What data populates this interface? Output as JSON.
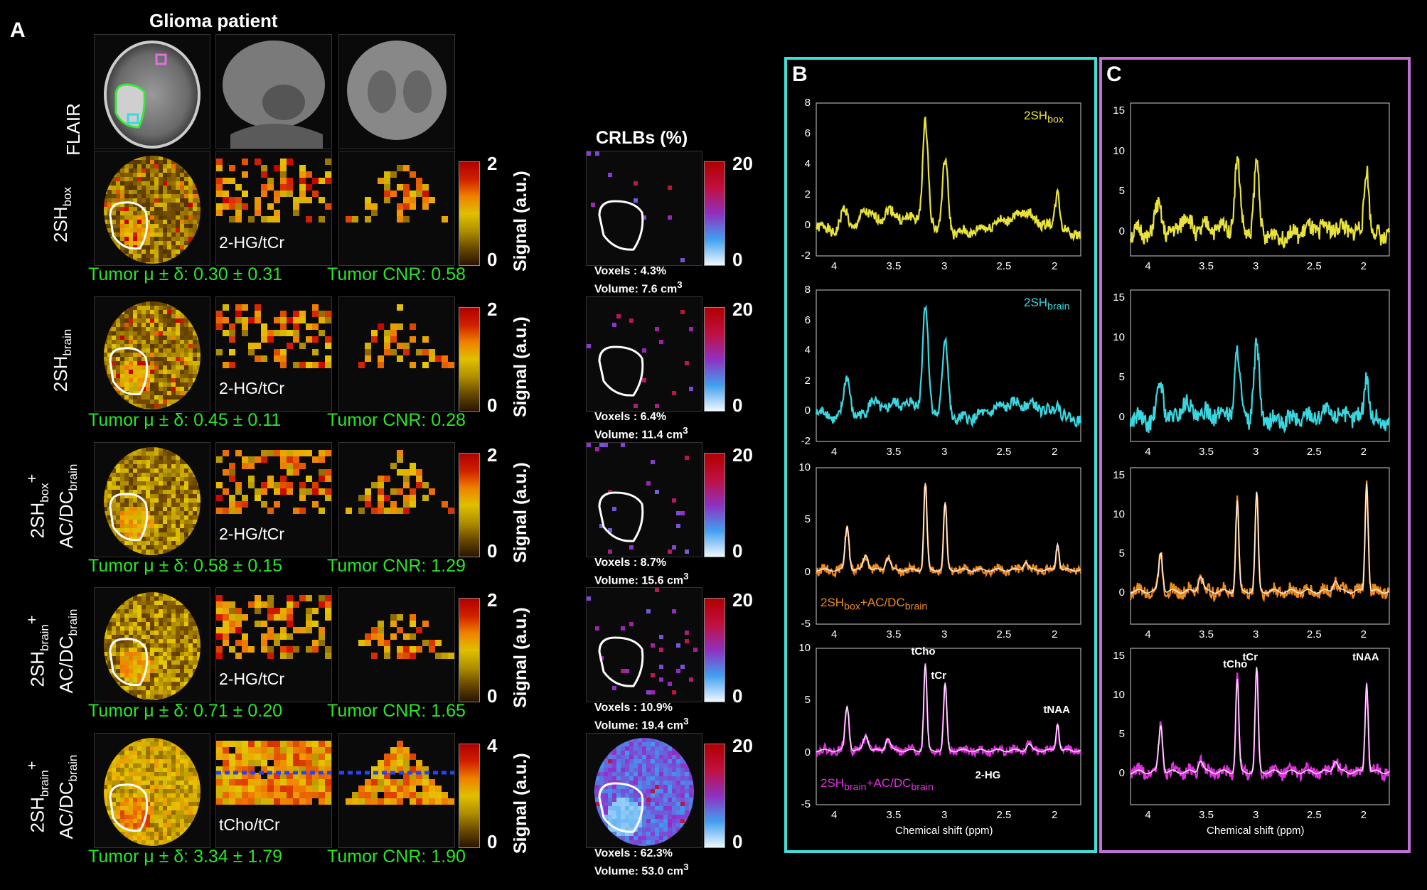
{
  "panelA": {
    "letter": "A",
    "title": "Glioma patient",
    "flair_label": "FLAIR",
    "rows": [
      {
        "label_main": "2SH",
        "label_sub": "box",
        "label_line2": "",
        "label_line2_sub": "",
        "metab": "2-HG/tCr",
        "mu": "Tumor μ ± δ:  0.30 ± 0.31",
        "cnr": "Tumor CNR:  0.58",
        "cmax": "2",
        "cmin": "0",
        "voxels": "Voxels :    4.3%",
        "volume": "Volume:  7.6 cm",
        "level": 0.25
      },
      {
        "label_main": "2SH",
        "label_sub": "brain",
        "label_line2": "",
        "label_line2_sub": "",
        "metab": "2-HG/tCr",
        "mu": "Tumor μ ± δ:  0.45 ± 0.11",
        "cnr": "Tumor CNR:  0.28",
        "cmax": "2",
        "cmin": "0",
        "voxels": "Voxels :    6.4%",
        "volume": "Volume:  11.4 cm",
        "level": 0.3
      },
      {
        "label_main": "2SH",
        "label_sub": "box",
        "label_plus": "+",
        "label_line2": "AC/DC",
        "label_line2_sub": "brain",
        "metab": "2-HG/tCr",
        "mu": "Tumor μ ± δ:  0.58 ± 0.15",
        "cnr": "Tumor CNR:  1.29",
        "cmax": "2",
        "cmin": "0",
        "voxels": "Voxels :    8.7%",
        "volume": "Volume:  15.6 cm",
        "level": 0.32
      },
      {
        "label_main": "2SH",
        "label_sub": "brain",
        "label_plus": "+",
        "label_line2": "AC/DC",
        "label_line2_sub": "brain",
        "metab": "2-HG/tCr",
        "mu": "Tumor μ ± δ:  0.71 ± 0.20",
        "cnr": "Tumor CNR:  1.65",
        "cmax": "2",
        "cmin": "0",
        "voxels": "Voxels :    10.9%",
        "volume": "Volume:  19.4 cm",
        "level": 0.35
      },
      {
        "label_main": "2SH",
        "label_sub": "brain",
        "label_plus": "+",
        "label_line2": "AC/DC",
        "label_line2_sub": "brain",
        "metab": "tCho/tCr",
        "mu": "Tumor μ ± δ:  3.34 ± 1.79",
        "cnr": "Tumor CNR:  1.90",
        "cmax": "4",
        "cmin": "0",
        "voxels": "Voxels :   62.3%",
        "volume": "Volume:  53.0 cm",
        "level": 0.6
      }
    ],
    "signal_label": "Signal (a.u.)",
    "crlb_title": "CRLBs (%)",
    "crlb_max": "20",
    "crlb_min": "0",
    "cube_sup": "3"
  },
  "panelB": {
    "letter": "B",
    "border_color": "#3ee0d8",
    "xlabel": "Chemical shift (ppm)",
    "plots": [
      {
        "legend_main": "2SH",
        "legend_sub": "box",
        "legend_extra": "",
        "legend_extra_sub": "",
        "color": "#e8e23a",
        "yticks": [
          "8",
          "6",
          "4",
          "2",
          "0",
          "-2"
        ]
      },
      {
        "legend_main": "2SH",
        "legend_sub": "brain",
        "legend_extra": "",
        "legend_extra_sub": "",
        "color": "#39d8e0",
        "yticks": [
          "8",
          "6",
          "4",
          "2",
          "0",
          "-2"
        ]
      },
      {
        "legend_main": "2SH",
        "legend_sub": "box",
        "legend_extra": "+AC/DC",
        "legend_extra_sub": "brain",
        "color": "#f08a1e",
        "yticks": [
          "10",
          "5",
          "0",
          "-5"
        ]
      },
      {
        "legend_main": "2SH",
        "legend_sub": "brain",
        "legend_extra": "+AC/DC",
        "legend_extra_sub": "brain",
        "color": "#e030e0",
        "yticks": [
          "10",
          "5",
          "0",
          "-5"
        ]
      }
    ],
    "xticks": [
      "4",
      "3.5",
      "3",
      "2.5",
      "2"
    ],
    "peaks": {
      "tCho": "tCho",
      "tCr": "tCr",
      "tNAA": "tNAA",
      "hg": "2-HG"
    }
  },
  "panelC": {
    "letter": "C",
    "border_color": "#c070d8",
    "xlabel": "Chemical shift (ppm)",
    "plots": [
      {
        "color": "#e8e23a",
        "yticks": [
          "15",
          "10",
          "5",
          "0"
        ]
      },
      {
        "color": "#39d8e0",
        "yticks": [
          "15",
          "10",
          "5",
          "0"
        ]
      },
      {
        "color": "#f08a1e",
        "yticks": [
          "15",
          "10",
          "5",
          "0"
        ]
      },
      {
        "color": "#e030e0",
        "yticks": [
          "15",
          "10",
          "5",
          "0"
        ]
      }
    ],
    "xticks": [
      "4",
      "3.5",
      "3",
      "2.5",
      "2"
    ],
    "peaks": {
      "tCho": "tCho",
      "tCr": "tCr",
      "tNAA": "tNAA"
    }
  }
}
